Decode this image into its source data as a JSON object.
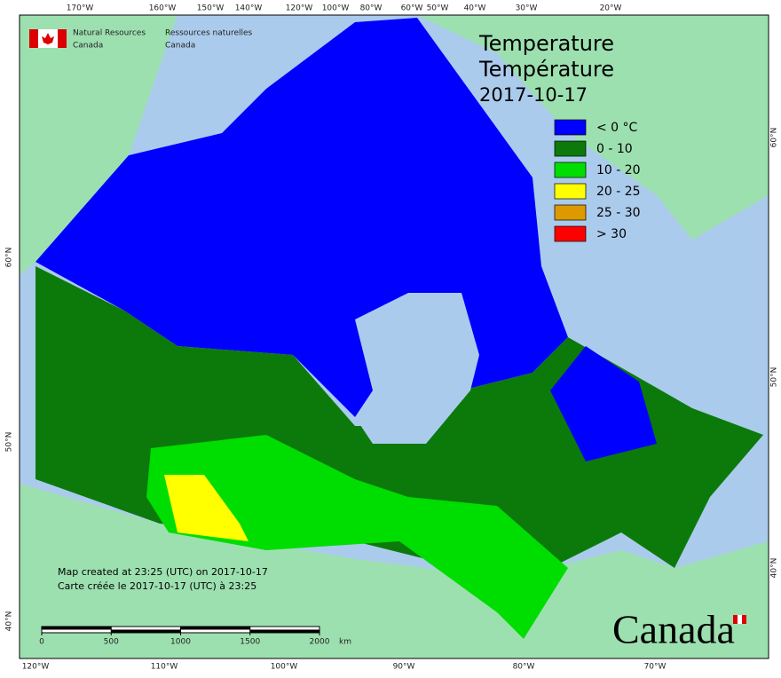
{
  "header": {
    "org_en": [
      "Natural Resources",
      "Canada"
    ],
    "org_fr": [
      "Ressources naturelles",
      "Canada"
    ]
  },
  "title": {
    "en": "Temperature",
    "fr": "Température",
    "date": "2017-10-17"
  },
  "legend": [
    {
      "label": "< 0 °C",
      "color": "#0000ff"
    },
    {
      "label": "0 - 10",
      "color": "#0b7a0b"
    },
    {
      "label": "10 - 20",
      "color": "#00dd00"
    },
    {
      "label": "20 - 25",
      "color": "#ffff00"
    },
    {
      "label": "25 - 30",
      "color": "#dd9900"
    },
    {
      "label": "> 30",
      "color": "#ff0000"
    }
  ],
  "top_labels": [
    "170°W",
    "160°W",
    "150°W",
    "140°W",
    "120°W",
    "100°W",
    "80°W",
    "60°W",
    "50°W",
    "40°W",
    "30°W",
    "20°W"
  ],
  "bottom_labels": [
    "120°W",
    "110°W",
    "100°W",
    "90°W",
    "80°W",
    "70°W"
  ],
  "left_labels": [
    "60°N",
    "50°N",
    "40°N"
  ],
  "right_labels": [
    "60°N",
    "50°N",
    "40°N"
  ],
  "notes": [
    "Map created at 23:25 (UTC) on 2017-10-17",
    "Carte créée le 2017-10-17 (UTC) à 23:25"
  ],
  "scale": {
    "ticks": [
      0,
      500,
      1000,
      1500,
      2000
    ],
    "unit": "km"
  },
  "wordmark": "Canada"
}
